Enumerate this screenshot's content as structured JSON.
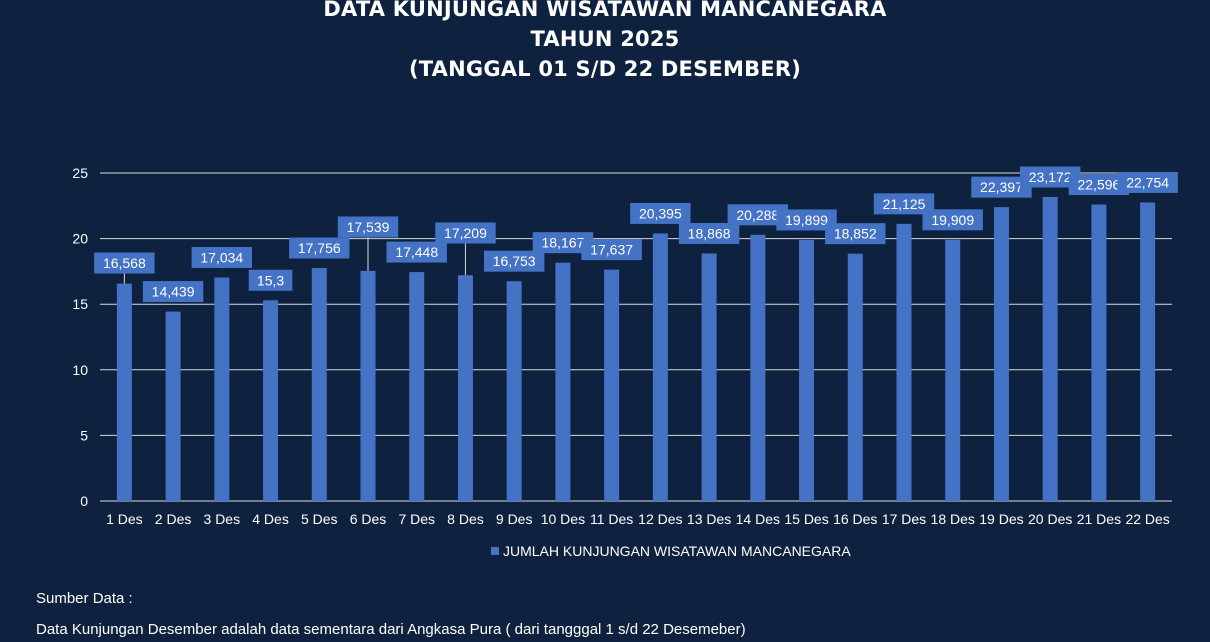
{
  "title_lines": [
    "DATA KUNJUNGAN WISATAWAN MANCANEGARA",
    "TAHUN 2025",
    "(TANGGAL 01 S/D 22 DESEMBER)"
  ],
  "footer": {
    "source_label": "Sumber Data :",
    "note": "Data Kunjungan Desember adalah data sementara dari Angkasa Pura ( dari tangggal 1 s/d 22 Desemeber)"
  },
  "colors": {
    "background": "#0e2240",
    "bar": "#4472c4",
    "text": "#ffffff",
    "grid": "#d9d9d9"
  },
  "chart_data": {
    "type": "bar",
    "title": "DATA KUNJUNGAN WISATAWAN MANCANEGARA TAHUN 2025 (TANGGAL 01 S/D 22 DESEMBER)",
    "categories": [
      "1 Des",
      "2 Des",
      "3 Des",
      "4 Des",
      "5 Des",
      "6 Des",
      "7 Des",
      "8 Des",
      "9 Des",
      "10 Des",
      "11 Des",
      "12 Des",
      "13 Des",
      "14 Des",
      "15 Des",
      "16 Des",
      "17 Des",
      "18 Des",
      "19 Des",
      "20 Des",
      "21 Des",
      "22 Des"
    ],
    "series": [
      {
        "name": "JUMLAH KUNJUNGAN WISATAWAN MANCANEGARA",
        "values": [
          16.568,
          14.439,
          17.034,
          15.3,
          17.756,
          17.539,
          17.448,
          17.209,
          16.753,
          18.167,
          17.637,
          20.395,
          18.868,
          20.288,
          19.899,
          18.852,
          21.125,
          19.909,
          22.397,
          23.172,
          22.596,
          22.754
        ],
        "labels": [
          "16,568",
          "14,439",
          "17,034",
          "15,3",
          "17,756",
          "17,539",
          "17,448",
          "17,209",
          "16,753",
          "18,167",
          "17,637",
          "20,395",
          "18,868",
          "20,288",
          "19,899",
          "18,852",
          "21,125",
          "19,909",
          "22,397",
          "23,172",
          "22,596",
          "22,754"
        ]
      }
    ],
    "ylim": [
      0,
      25
    ],
    "yticks": [
      "0",
      "5",
      "10",
      "15",
      "20",
      "25"
    ],
    "xlabel": "",
    "ylabel": "",
    "grid": true,
    "legend": "bottom"
  }
}
